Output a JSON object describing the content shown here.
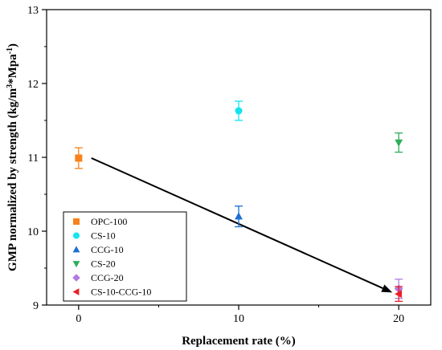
{
  "chart_data": {
    "type": "scatter",
    "xlabel": "Replacement rate (%)",
    "ylabel_parts": [
      "GMP normalized by strength (kg/m",
      "3",
      "*Mpa",
      "-1",
      ")"
    ],
    "xlim": [
      -2,
      22
    ],
    "ylim": [
      9,
      13
    ],
    "xticks": [
      "0",
      "10",
      "20"
    ],
    "xtick_values": [
      0,
      10,
      20
    ],
    "yticks": [
      "9",
      "10",
      "11",
      "12",
      "13"
    ],
    "ytick_values": [
      9,
      10,
      11,
      12,
      13
    ],
    "legend_position": "bottom-left",
    "series": [
      {
        "name": "OPC-100",
        "marker": "square",
        "color": "#f7821b",
        "x": 0,
        "y": 10.99,
        "err": 0.14
      },
      {
        "name": "CS-10",
        "marker": "circle",
        "color": "#14e3f0",
        "x": 10,
        "y": 11.63,
        "err": 0.13
      },
      {
        "name": "CCG-10",
        "marker": "triangle-up",
        "color": "#1b6fd6",
        "x": 10,
        "y": 10.2,
        "err": 0.14
      },
      {
        "name": "CS-20",
        "marker": "triangle-down",
        "color": "#2ead5b",
        "x": 20,
        "y": 11.2,
        "err": 0.13
      },
      {
        "name": "CCG-20",
        "marker": "diamond",
        "color": "#b27be0",
        "x": 20,
        "y": 9.22,
        "err": 0.13
      },
      {
        "name": "CS-10-CCG-10",
        "marker": "triangle-left",
        "color": "#e8202a",
        "x": 20,
        "y": 9.15,
        "err": 0.1
      }
    ],
    "arrow": {
      "from": [
        0.8,
        10.99
      ],
      "to": [
        19.6,
        9.17
      ],
      "color": "#000000"
    }
  }
}
